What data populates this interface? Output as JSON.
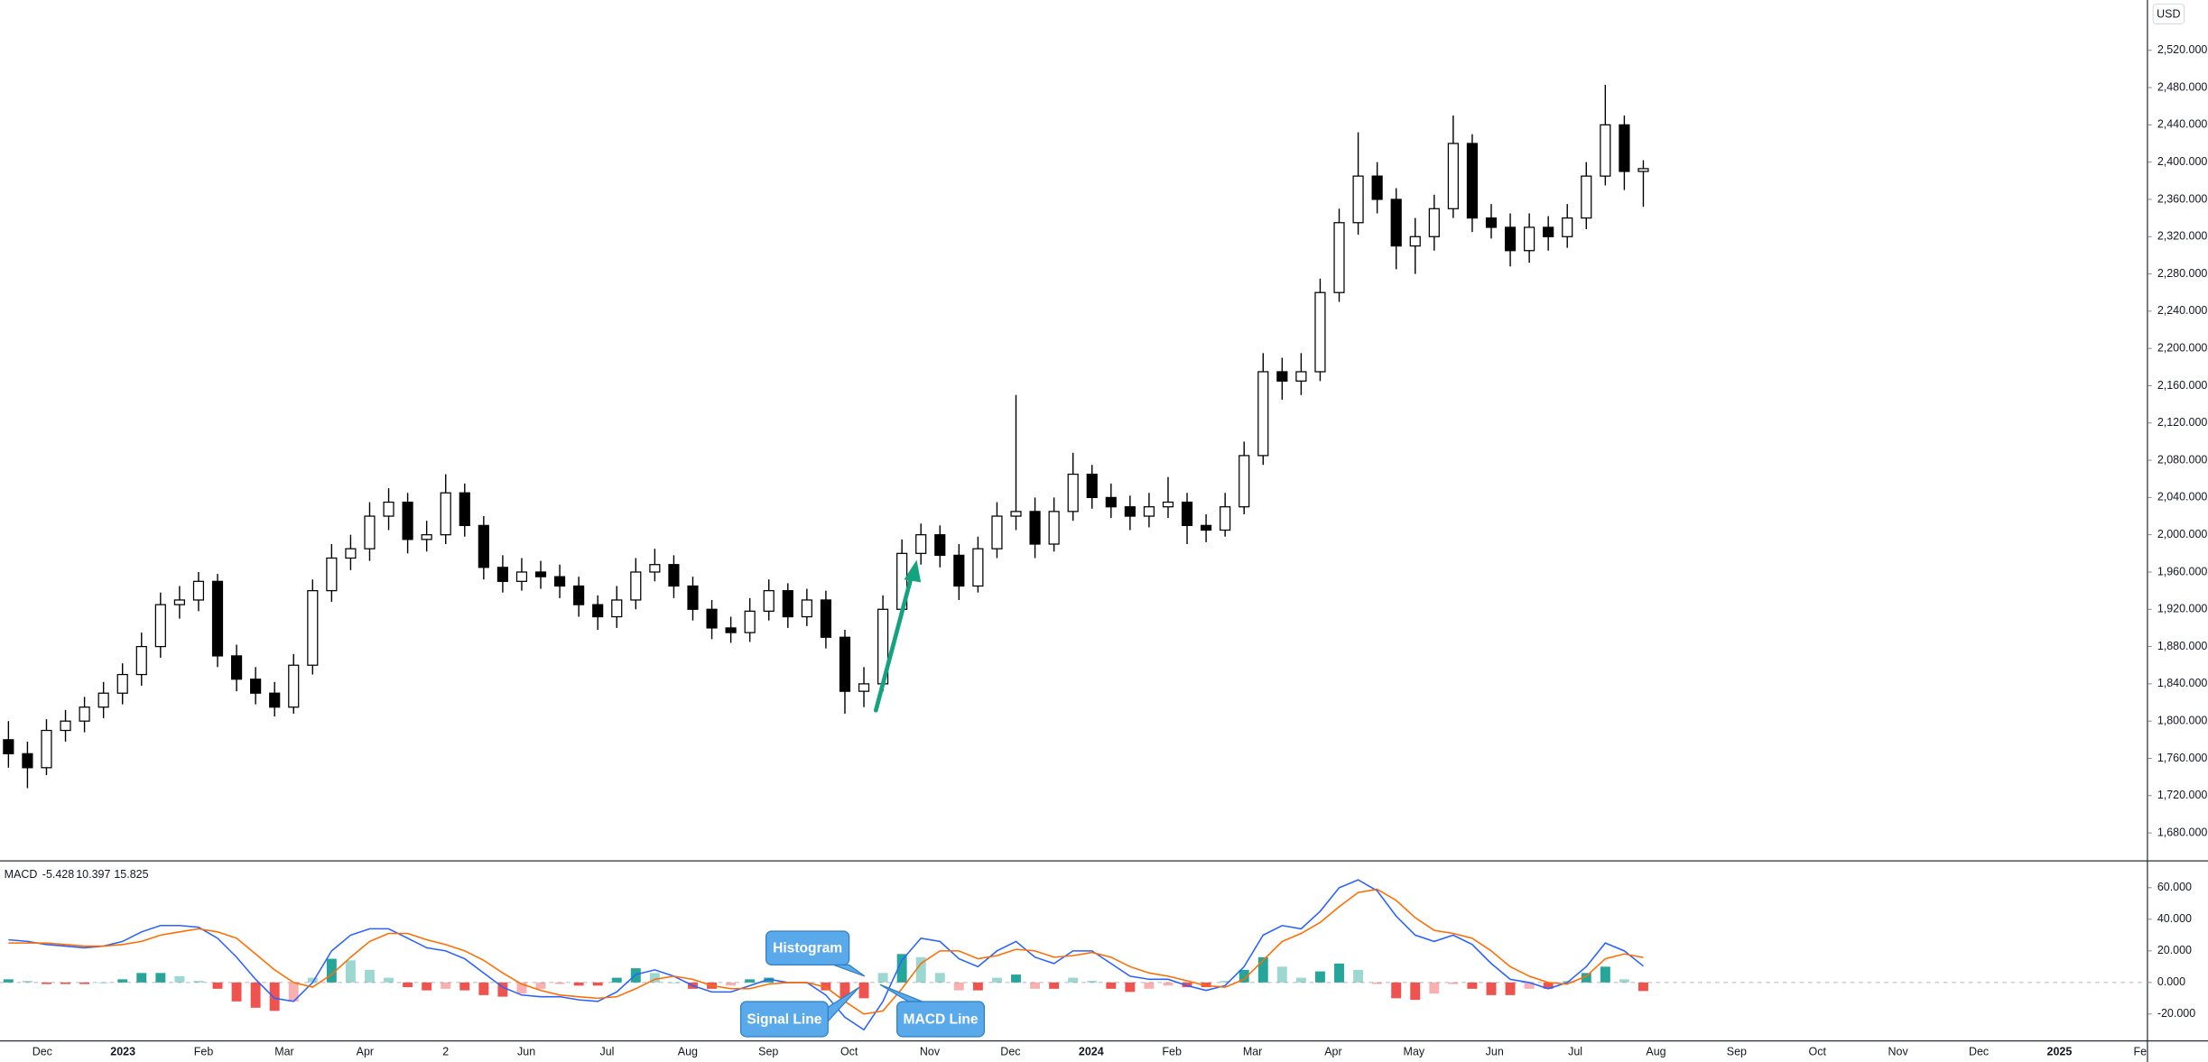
{
  "chart_data": {
    "type": "candlestick",
    "currency": "USD",
    "ohlc": [
      [
        1780,
        1800,
        1750,
        1765
      ],
      [
        1765,
        1778,
        1728,
        1750
      ],
      [
        1750,
        1802,
        1742,
        1790
      ],
      [
        1790,
        1812,
        1778,
        1800
      ],
      [
        1800,
        1826,
        1788,
        1815
      ],
      [
        1815,
        1842,
        1803,
        1830
      ],
      [
        1830,
        1862,
        1818,
        1850
      ],
      [
        1850,
        1895,
        1838,
        1880
      ],
      [
        1880,
        1938,
        1868,
        1925
      ],
      [
        1925,
        1945,
        1910,
        1930
      ],
      [
        1930,
        1960,
        1918,
        1950
      ],
      [
        1950,
        1958,
        1858,
        1870
      ],
      [
        1870,
        1882,
        1832,
        1845
      ],
      [
        1845,
        1858,
        1818,
        1830
      ],
      [
        1830,
        1842,
        1805,
        1815
      ],
      [
        1815,
        1872,
        1808,
        1860
      ],
      [
        1860,
        1952,
        1850,
        1940
      ],
      [
        1940,
        1990,
        1928,
        1975
      ],
      [
        1975,
        2000,
        1962,
        1985
      ],
      [
        1985,
        2035,
        1972,
        2020
      ],
      [
        2020,
        2050,
        2005,
        2035
      ],
      [
        2035,
        2045,
        1980,
        1995
      ],
      [
        1995,
        2015,
        1982,
        2000
      ],
      [
        2000,
        2065,
        1990,
        2045
      ],
      [
        2045,
        2055,
        1998,
        2010
      ],
      [
        2010,
        2020,
        1952,
        1965
      ],
      [
        1965,
        1978,
        1938,
        1950
      ],
      [
        1950,
        1975,
        1940,
        1960
      ],
      [
        1960,
        1972,
        1942,
        1955
      ],
      [
        1955,
        1968,
        1932,
        1945
      ],
      [
        1945,
        1955,
        1912,
        1925
      ],
      [
        1925,
        1935,
        1898,
        1912
      ],
      [
        1912,
        1945,
        1900,
        1930
      ],
      [
        1930,
        1975,
        1920,
        1960
      ],
      [
        1960,
        1985,
        1950,
        1968
      ],
      [
        1968,
        1978,
        1932,
        1945
      ],
      [
        1945,
        1955,
        1908,
        1920
      ],
      [
        1920,
        1930,
        1888,
        1900
      ],
      [
        1900,
        1912,
        1884,
        1895
      ],
      [
        1895,
        1932,
        1885,
        1918
      ],
      [
        1918,
        1952,
        1908,
        1940
      ],
      [
        1940,
        1948,
        1900,
        1912
      ],
      [
        1912,
        1942,
        1902,
        1930
      ],
      [
        1930,
        1940,
        1878,
        1890
      ],
      [
        1890,
        1898,
        1808,
        1832
      ],
      [
        1832,
        1858,
        1815,
        1840
      ],
      [
        1840,
        1935,
        1832,
        1920
      ],
      [
        1920,
        1995,
        1912,
        1980
      ],
      [
        1980,
        2012,
        1968,
        2000
      ],
      [
        2000,
        2010,
        1965,
        1978
      ],
      [
        1978,
        1990,
        1930,
        1945
      ],
      [
        1945,
        1998,
        1938,
        1985
      ],
      [
        1985,
        2035,
        1975,
        2020
      ],
      [
        2020,
        2150,
        2005,
        2025
      ],
      [
        2025,
        2040,
        1975,
        1990
      ],
      [
        1990,
        2040,
        1982,
        2025
      ],
      [
        2025,
        2088,
        2015,
        2065
      ],
      [
        2065,
        2075,
        2028,
        2040
      ],
      [
        2040,
        2055,
        2018,
        2030
      ],
      [
        2030,
        2042,
        2005,
        2020
      ],
      [
        2020,
        2045,
        2008,
        2030
      ],
      [
        2030,
        2062,
        2018,
        2035
      ],
      [
        2035,
        2045,
        1990,
        2010
      ],
      [
        2010,
        2022,
        1992,
        2005
      ],
      [
        2005,
        2045,
        1998,
        2030
      ],
      [
        2030,
        2100,
        2022,
        2085
      ],
      [
        2085,
        2195,
        2075,
        2175
      ],
      [
        2175,
        2190,
        2145,
        2165
      ],
      [
        2165,
        2195,
        2150,
        2175
      ],
      [
        2175,
        2275,
        2165,
        2260
      ],
      [
        2260,
        2350,
        2250,
        2335
      ],
      [
        2335,
        2432,
        2322,
        2385
      ],
      [
        2385,
        2400,
        2345,
        2360
      ],
      [
        2360,
        2372,
        2285,
        2310
      ],
      [
        2310,
        2340,
        2280,
        2320
      ],
      [
        2320,
        2365,
        2305,
        2350
      ],
      [
        2350,
        2450,
        2340,
        2420
      ],
      [
        2420,
        2430,
        2325,
        2340
      ],
      [
        2340,
        2355,
        2318,
        2330
      ],
      [
        2330,
        2345,
        2288,
        2305
      ],
      [
        2305,
        2345,
        2292,
        2330
      ],
      [
        2330,
        2342,
        2305,
        2320
      ],
      [
        2320,
        2355,
        2308,
        2340
      ],
      [
        2340,
        2400,
        2328,
        2385
      ],
      [
        2385,
        2483,
        2375,
        2440
      ],
      [
        2440,
        2450,
        2370,
        2390
      ],
      [
        2390,
        2402,
        2352,
        2393
      ]
    ],
    "ylim": [
      1650,
      2574
    ],
    "yticks": [
      {
        "value": 1680,
        "label": "1,680.000"
      },
      {
        "value": 1720,
        "label": "1,720.000"
      },
      {
        "value": 1760,
        "label": "1,760.000"
      },
      {
        "value": 1800,
        "label": "1,800.000"
      },
      {
        "value": 1840,
        "label": "1,840.000"
      },
      {
        "value": 1880,
        "label": "1,880.000"
      },
      {
        "value": 1920,
        "label": "1,920.000"
      },
      {
        "value": 1960,
        "label": "1,960.000"
      },
      {
        "value": 2000,
        "label": "2,000.000"
      },
      {
        "value": 2040,
        "label": "2,040.000"
      },
      {
        "value": 2080,
        "label": "2,080.000"
      },
      {
        "value": 2120,
        "label": "2,120.000"
      },
      {
        "value": 2160,
        "label": "2,160.000"
      },
      {
        "value": 2200,
        "label": "2,200.000"
      },
      {
        "value": 2240,
        "label": "2,240.000"
      },
      {
        "value": 2280,
        "label": "2,280.000"
      },
      {
        "value": 2320,
        "label": "2,320.000"
      },
      {
        "value": 2360,
        "label": "2,360.000"
      },
      {
        "value": 2400,
        "label": "2,400.000"
      },
      {
        "value": 2440,
        "label": "2,440.000"
      },
      {
        "value": 2480,
        "label": "2,480.000"
      },
      {
        "value": 2520,
        "label": "2,520.000"
      }
    ],
    "x_labels": [
      "Dec",
      "2023",
      "Feb",
      "Mar",
      "Apr",
      "2",
      "Jun",
      "Jul",
      "Aug",
      "Sep",
      "Oct",
      "Nov",
      "Dec",
      "2024",
      "Feb",
      "Mar",
      "Apr",
      "May",
      "Jun",
      "Jul",
      "Aug",
      "Sep",
      "Oct",
      "Nov",
      "Dec",
      "2025",
      "Fe"
    ],
    "annotations": [
      "Histogram",
      "Signal Line",
      "MACD Line"
    ],
    "indicator": {
      "type": "macd",
      "name": "MACD",
      "ylim": [
        -37,
        77
      ],
      "yticks": [
        {
          "value": -20,
          "label": "-20.000"
        },
        {
          "value": 0,
          "label": "0.000"
        },
        {
          "value": 20,
          "label": "20.000"
        },
        {
          "value": 40,
          "label": "40.000"
        },
        {
          "value": 60,
          "label": "60.000"
        }
      ],
      "histogram": {
        "up_color": "#26a69a",
        "down_color": "#ef5350",
        "values": [
          2,
          1,
          -1,
          -1,
          -1,
          0,
          2,
          6,
          6,
          4,
          1,
          -4,
          -12,
          -16,
          -18,
          -12,
          3,
          15,
          14,
          8,
          3,
          -3,
          -5,
          -4,
          -5,
          -8,
          -9,
          -7,
          -4,
          -1,
          -2,
          -2,
          3,
          9,
          6,
          0,
          -4,
          -4,
          -2,
          2,
          3,
          0,
          0,
          -5,
          -10,
          -10,
          6,
          18,
          16,
          6,
          -5,
          -5,
          3,
          5,
          -4,
          -4,
          3,
          1,
          -4,
          -6,
          -4,
          -2,
          -3,
          -3,
          1,
          8,
          16,
          10,
          3,
          7,
          12,
          8,
          -1,
          -10,
          -11,
          -7,
          -1,
          -4,
          -8,
          -8,
          -4,
          -4,
          1,
          6,
          10,
          2,
          -5.428
        ]
      },
      "macd": {
        "color": "#2962ff",
        "values": [
          27,
          26,
          24,
          23,
          22,
          23,
          26,
          32,
          36,
          36,
          35,
          28,
          16,
          2,
          -10,
          -12,
          0,
          20,
          30,
          34,
          34,
          28,
          22,
          20,
          15,
          6,
          -3,
          -8,
          -9,
          -9,
          -11,
          -12,
          -6,
          5,
          8,
          4,
          -2,
          -6,
          -6,
          -2,
          2,
          0,
          0,
          -8,
          -22,
          -30,
          -12,
          14,
          28,
          26,
          15,
          10,
          20,
          26,
          16,
          12,
          20,
          20,
          12,
          4,
          2,
          2,
          -2,
          -5,
          -2,
          10,
          30,
          36,
          34,
          45,
          60,
          65,
          58,
          42,
          30,
          26,
          30,
          24,
          12,
          2,
          0,
          -4,
          0,
          10,
          25,
          20,
          10.397
        ]
      },
      "signal": {
        "color": "#ff6d00",
        "values": [
          25,
          25,
          25,
          24,
          23,
          23,
          24,
          26,
          30,
          32,
          34,
          32,
          28,
          18,
          8,
          0,
          -3,
          5,
          16,
          26,
          31,
          31,
          27,
          24,
          20,
          14,
          6,
          -1,
          -5,
          -8,
          -9,
          -10,
          -9,
          -4,
          2,
          4,
          2,
          -2,
          -4,
          -4,
          -1,
          0,
          0,
          -3,
          -12,
          -20,
          -18,
          -4,
          12,
          20,
          20,
          15,
          17,
          21,
          20,
          16,
          17,
          19,
          16,
          10,
          6,
          4,
          1,
          -2,
          -3,
          2,
          14,
          26,
          31,
          38,
          48,
          57,
          59,
          52,
          41,
          33,
          31,
          28,
          20,
          10,
          4,
          0,
          -1,
          4,
          15,
          18,
          15.825
        ]
      }
    }
  }
}
